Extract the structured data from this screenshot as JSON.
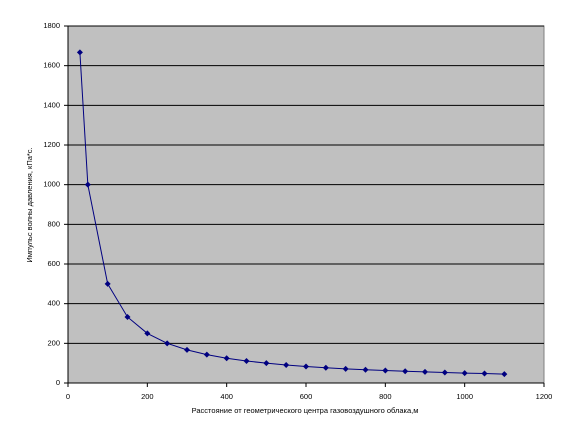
{
  "chart_data": {
    "type": "line",
    "x_label": "Расстояние от геометрического центра газовоздушного облака,м",
    "y_label": "Импульс волны давления, кПа*с.",
    "x": [
      30,
      50,
      100,
      150,
      200,
      250,
      300,
      350,
      400,
      450,
      500,
      550,
      600,
      650,
      700,
      750,
      800,
      850,
      900,
      950,
      1000,
      1050,
      1100
    ],
    "series": [
      {
        "color": "#000080",
        "values": [
          1667,
          1000,
          500,
          333,
          250,
          200,
          167,
          143,
          125,
          111,
          100,
          91,
          83,
          77,
          71,
          67,
          63,
          59,
          56,
          53,
          50,
          48,
          45
        ]
      }
    ],
    "xlim": [
      0,
      1200
    ],
    "xticks": [
      0,
      200,
      400,
      600,
      800,
      1000,
      1200
    ],
    "ylim": [
      0,
      1800
    ],
    "yticks": [
      0,
      200,
      400,
      600,
      800,
      1000,
      1200,
      1400,
      1600,
      1800
    ],
    "grid": true,
    "plot_background": "#c0c0c0"
  }
}
